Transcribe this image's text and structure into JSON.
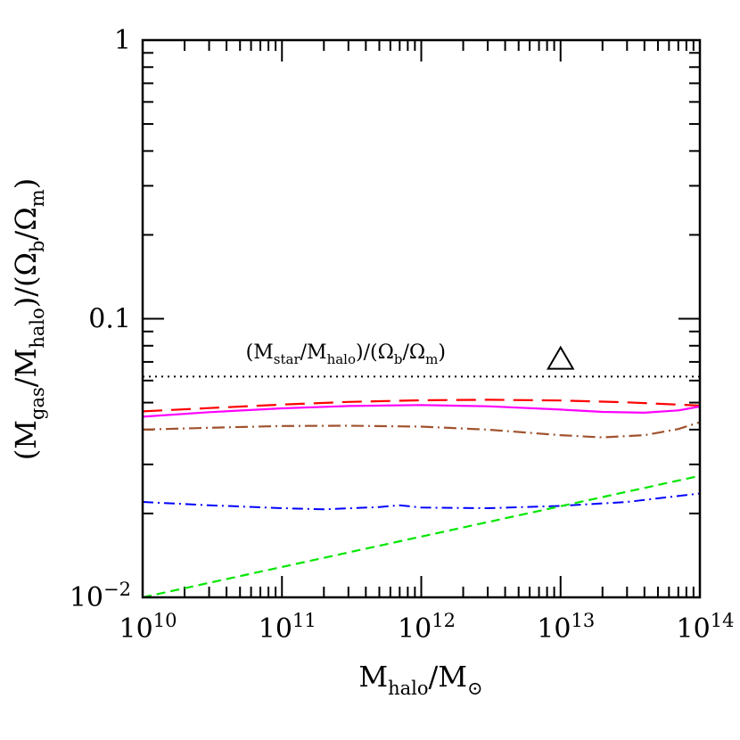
{
  "chart_data": {
    "type": "line",
    "x_scale": "log",
    "y_scale": "log",
    "xlim": [
      10000000000.0,
      100000000000000.0
    ],
    "ylim": [
      0.01,
      1
    ],
    "grid": false,
    "x_ticks": [
      {
        "value": 10000000000.0,
        "base": "10",
        "exp": "10"
      },
      {
        "value": 100000000000.0,
        "base": "10",
        "exp": "11"
      },
      {
        "value": 1000000000000.0,
        "base": "10",
        "exp": "12"
      },
      {
        "value": 10000000000000.0,
        "base": "10",
        "exp": "13"
      },
      {
        "value": 100000000000000.0,
        "base": "10",
        "exp": "14"
      }
    ],
    "y_ticks": [
      {
        "value": 0.01,
        "base": "10",
        "exp": "−2"
      },
      {
        "value": 0.1,
        "base": "0.1",
        "exp": ""
      },
      {
        "value": 1,
        "base": "1",
        "exp": ""
      }
    ],
    "xlabel": {
      "main": "M",
      "sub": "halo",
      "sep": "/M",
      "sub2": "⊙"
    },
    "ylabel": {
      "p1": "(M",
      "s1": "gas",
      "p2": "/M",
      "s2": "halo",
      "p3": ")/(Ω",
      "s3": "b",
      "p4": "/Ω",
      "s4": "m",
      "p5": ")"
    },
    "annotation": {
      "p1": "(M",
      "s1": "star",
      "p2": "/M",
      "s2": "halo",
      "p3": ")/(Ω",
      "s3": "b",
      "p4": "/Ω",
      "s4": "m",
      "p5": ")",
      "x": 55000000000.0,
      "y": 0.072
    },
    "marker": {
      "shape": "triangle",
      "x": 10000000000000.0,
      "y": 0.071
    },
    "series": [
      {
        "color": "#000000",
        "dash": "2,5",
        "width": 2,
        "x": [
          10000000000.0,
          100000000000000.0
        ],
        "y": [
          0.062,
          0.062
        ]
      },
      {
        "color": "#ff0000",
        "dash": "22,10",
        "width": 2.2,
        "x": [
          10000000000.0,
          30000000000.0,
          100000000000.0,
          300000000000.0,
          1000000000000.0,
          3000000000000.0,
          10000000000000.0,
          30000000000000.0,
          100000000000000.0
        ],
        "y": [
          0.0465,
          0.0478,
          0.0492,
          0.0503,
          0.051,
          0.0512,
          0.0509,
          0.0501,
          0.0488
        ]
      },
      {
        "color": "#ff00ff",
        "dash": "",
        "width": 2.2,
        "x": [
          10000000000.0,
          30000000000.0,
          100000000000.0,
          300000000000.0,
          1000000000000.0,
          3000000000000.0,
          10000000000000.0,
          20000000000000.0,
          40000000000000.0,
          70000000000000.0,
          100000000000000.0
        ],
        "y": [
          0.0445,
          0.0462,
          0.0477,
          0.0486,
          0.049,
          0.0485,
          0.0472,
          0.0463,
          0.046,
          0.0469,
          0.0484
        ]
      },
      {
        "color": "#a0522d",
        "dash": "14,5,2,5",
        "width": 2.2,
        "x": [
          10000000000.0,
          30000000000.0,
          100000000000.0,
          300000000000.0,
          1000000000000.0,
          3000000000000.0,
          10000000000000.0,
          20000000000000.0,
          40000000000000.0,
          70000000000000.0,
          100000000000000.0
        ],
        "y": [
          0.04,
          0.0406,
          0.0412,
          0.0413,
          0.041,
          0.04,
          0.0382,
          0.0375,
          0.0382,
          0.0402,
          0.0425
        ]
      },
      {
        "color": "#0000ff",
        "dash": "12,5,2,5",
        "width": 2,
        "x": [
          10000000000.0,
          30000000000.0,
          100000000000.0,
          200000000000.0,
          500000000000.0,
          700000000000.0,
          1000000000000.0,
          3000000000000.0,
          10000000000000.0,
          30000000000000.0,
          100000000000000.0
        ],
        "y": [
          0.022,
          0.0214,
          0.0209,
          0.0207,
          0.0211,
          0.0214,
          0.021,
          0.0209,
          0.0213,
          0.022,
          0.0236
        ]
      },
      {
        "color": "#00e600",
        "dash": "10,6",
        "width": 2.2,
        "x": [
          10000000000.0,
          100000000000000.0
        ],
        "y": [
          0.01,
          0.0273
        ]
      }
    ]
  }
}
